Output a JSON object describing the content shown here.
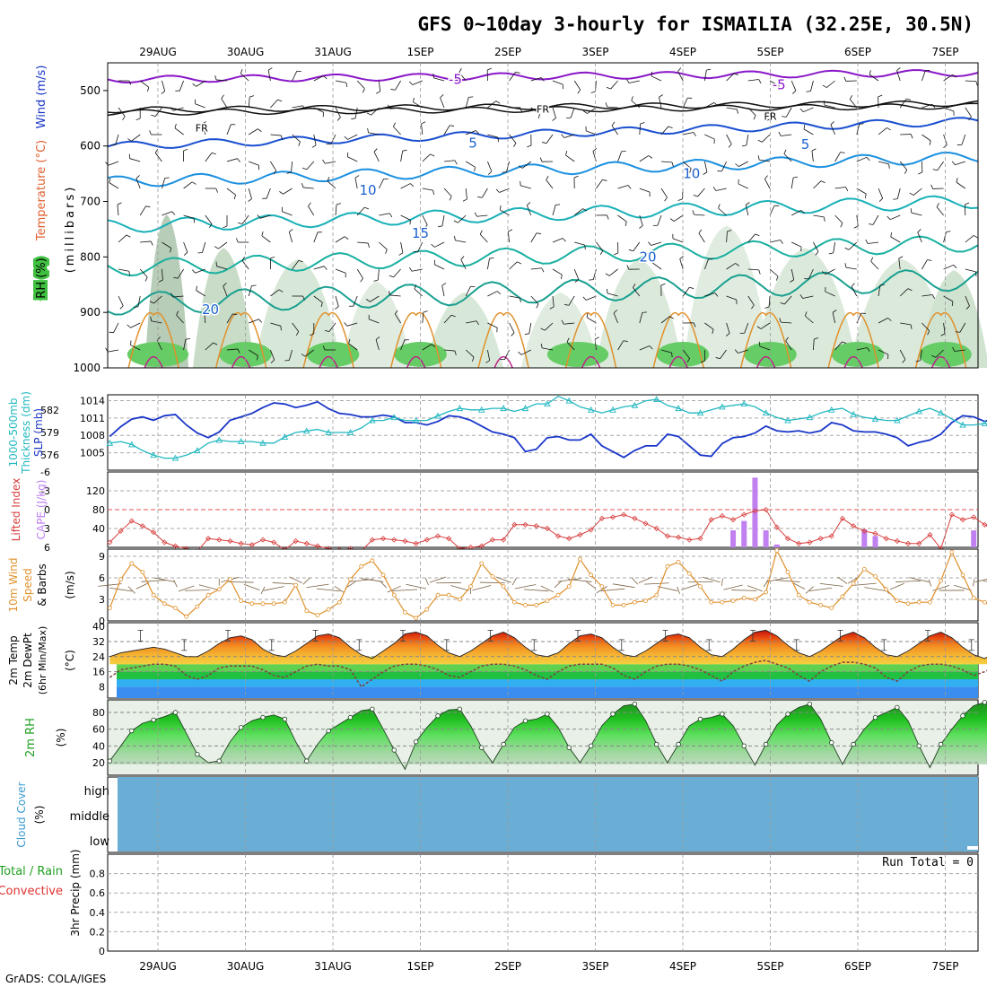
{
  "title": "GFS 0~10day 3-hourly for ISMAILIA (32.25E, 30.5N)",
  "credit": "GrADS: COLA/IGES",
  "run_total_label": "Run Total = 0",
  "colors": {
    "temp_contour": "#1a4fd0",
    "freezing": "#111111",
    "thickness": "#22b8c0",
    "slp": "#1a36c8",
    "lifted_index": "#d84040",
    "cape": "#c080f0",
    "wind10m": "#e0902a",
    "rh2m": "#20b020",
    "cloud": "#6aaed6"
  },
  "chart_data": [
    {
      "type": "line",
      "name": "upper-air",
      "ylabel_parts": [
        "RH (%)",
        "Temperature (°C)",
        "Wind (m/s)"
      ],
      "ylabel_mb": "(millibars)",
      "y_ticks": [
        500,
        600,
        700,
        800,
        900,
        1000
      ],
      "ylim": [
        1000,
        450
      ],
      "x_ticks": [
        "29AUG",
        "30AUG",
        "31AUG",
        "1SEP",
        "2SEP",
        "3SEP",
        "4SEP",
        "5SEP",
        "6SEP",
        "7SEP"
      ],
      "contour_labels": [
        {
          "text": "-5",
          "day": 3.4,
          "mb": 480
        },
        {
          "text": "-5",
          "day": 7.1,
          "mb": 490
        },
        {
          "text": "FR",
          "day": 0.5,
          "mb": 566
        },
        {
          "text": "FR",
          "day": 4.4,
          "mb": 532
        },
        {
          "text": "FR",
          "day": 7.0,
          "mb": 545
        },
        {
          "text": "5",
          "day": 3.6,
          "mb": 595
        },
        {
          "text": "5",
          "day": 7.4,
          "mb": 597
        },
        {
          "text": "10",
          "day": 2.4,
          "mb": 680
        },
        {
          "text": "10",
          "day": 6.1,
          "mb": 650
        },
        {
          "text": "15",
          "day": 3.0,
          "mb": 757
        },
        {
          "text": "20",
          "day": 5.6,
          "mb": 800
        },
        {
          "text": "20",
          "day": 0.6,
          "mb": 895
        }
      ]
    },
    {
      "type": "line",
      "name": "slp-thickness",
      "ylabel_left": [
        "1000-500mb",
        "Thickness (dm)"
      ],
      "ylabel_right": "SLP (mb)",
      "left_ticks": [
        576,
        579,
        582
      ],
      "right_ticks": [
        1005,
        1008,
        1011,
        1014
      ],
      "series": [
        {
          "name": "SLP",
          "values": [
            1007.8,
            1009.5,
            1010.8,
            1011.2,
            1010.6,
            1011.4,
            1011.6,
            1009.8,
            1008.4,
            1007.6,
            1008.6,
            1010.6,
            1011.2,
            1011.8,
            1012.8,
            1013.6,
            1013.4,
            1012.8,
            1013.2,
            1013.8,
            1012.6,
            1011.8,
            1011.6,
            1011.2,
            1011.2,
            1011.5,
            1011.2,
            1010.2,
            1010.2,
            1009.8,
            1010.4,
            1011.4,
            1011.2,
            1010.6,
            1009.6,
            1008.6,
            1008.2,
            1007.6,
            1005.2,
            1005.6,
            1007.6,
            1007.8,
            1007.2,
            1007.2,
            1008.2,
            1006.2,
            1005.2,
            1004.2,
            1005.4,
            1006.2,
            1006.2,
            1008.2,
            1007.8,
            1006.2,
            1004.6,
            1004.4,
            1006.6,
            1007.6,
            1007.8,
            1008.4,
            1009.6,
            1008.8,
            1008.6,
            1008.8,
            1008.4,
            1008.8,
            1010.2,
            1009.8,
            1008.8,
            1008.6,
            1008.6,
            1008.2,
            1007.6,
            1006.2,
            1006.8,
            1007.2,
            1008.2,
            1010.2,
            1011.4,
            1011.2,
            1010.4,
            1011.0,
            1011.4
          ]
        },
        {
          "name": "Thickness",
          "values": [
            577.6,
            577.8,
            577.4,
            576.6,
            576.0,
            575.6,
            575.6,
            576.0,
            576.6,
            577.6,
            578.0,
            577.8,
            577.8,
            577.8,
            577.6,
            577.6,
            578.4,
            579.0,
            579.2,
            579.4,
            579.0,
            579.0,
            579.0,
            579.6,
            580.6,
            580.6,
            581.0,
            580.6,
            580.6,
            580.6,
            581.2,
            581.8,
            582.2,
            582.0,
            582.0,
            582.2,
            582.2,
            581.8,
            582.2,
            582.8,
            582.8,
            583.8,
            583.2,
            582.4,
            582.0,
            581.6,
            582.0,
            582.4,
            582.6,
            583.2,
            583.4,
            582.6,
            582.2,
            581.6,
            581.6,
            582.0,
            582.4,
            582.6,
            582.8,
            582.4,
            581.6,
            581.0,
            580.6,
            580.8,
            581.0,
            581.6,
            582.0,
            582.2,
            581.4,
            581.0,
            580.8,
            580.6,
            580.6,
            581.2,
            581.8,
            582.2,
            581.6,
            580.8,
            580.0,
            580.0,
            580.2,
            579.6,
            580.4
          ]
        }
      ]
    },
    {
      "type": "bar",
      "name": "lifted-index-cape",
      "ylabel_left": "Lifted Index",
      "ylabel_right": "CAPE (J/kg)",
      "li_ticks": [
        "-6",
        "-3",
        "0",
        "3",
        "6"
      ],
      "cape_ticks": [
        40,
        80,
        120
      ],
      "lifted_index": [
        5.2,
        3.4,
        1.8,
        2.6,
        3.6,
        5.2,
        5.8,
        6.2,
        6.6,
        4.6,
        4.8,
        5.0,
        5.4,
        5.6,
        4.8,
        5.2,
        6.4,
        5.0,
        5.4,
        5.8,
        6.2,
        6.4,
        6.2,
        6.6,
        4.8,
        4.6,
        4.8,
        5.0,
        5.4,
        4.8,
        4.2,
        4.6,
        6.2,
        6.0,
        5.8,
        4.8,
        4.8,
        2.4,
        2.4,
        2.6,
        3.0,
        4.2,
        4.6,
        4.0,
        3.2,
        1.4,
        1.2,
        0.8,
        1.4,
        2.2,
        3.0,
        4.2,
        4.4,
        4.8,
        4.6,
        1.6,
        1.0,
        1.6,
        0.8,
        0.2,
        0.0,
        2.8,
        4.6,
        5.4,
        5.2,
        4.6,
        4.2,
        1.4,
        2.6,
        3.4,
        3.8,
        4.6,
        5.0,
        5.4,
        5.4,
        4.0,
        6.2,
        0.8,
        1.6,
        1.2,
        2.4,
        3.4,
        2.6
      ],
      "cape": [
        0,
        0,
        0,
        0,
        0,
        0,
        0,
        0,
        0,
        0,
        0,
        0,
        0,
        0,
        0,
        0,
        0,
        0,
        0,
        0,
        0,
        0,
        0,
        0,
        0,
        0,
        0,
        0,
        0,
        0,
        0,
        0,
        0,
        0,
        0,
        0,
        0,
        0,
        0,
        0,
        0,
        0,
        0,
        0,
        0,
        0,
        0,
        0,
        0,
        0,
        0,
        0,
        0,
        0,
        0,
        0,
        0,
        36,
        56,
        148,
        36,
        6,
        0,
        0,
        0,
        0,
        0,
        0,
        0,
        38,
        24,
        0,
        0,
        0,
        0,
        0,
        0,
        0,
        0,
        36,
        0,
        0,
        0
      ]
    },
    {
      "type": "line",
      "name": "wind10m",
      "ylabel": [
        "10m Wind",
        "Speed",
        "& Barbs",
        "(m/s)"
      ],
      "y_ticks": [
        0,
        3,
        6,
        9
      ],
      "series": [
        {
          "name": "Speed",
          "values": [
            1.8,
            5.8,
            8.0,
            6.8,
            3.6,
            2.4,
            1.8,
            0.6,
            2.0,
            3.6,
            4.4,
            5.8,
            2.8,
            2.4,
            2.4,
            2.4,
            2.6,
            5.0,
            1.4,
            0.8,
            1.6,
            2.6,
            5.8,
            7.6,
            8.4,
            6.4,
            3.6,
            1.2,
            0.4,
            1.6,
            3.6,
            3.6,
            3.0,
            4.8,
            8.0,
            6.2,
            4.8,
            2.6,
            2.2,
            2.2,
            2.8,
            3.6,
            4.8,
            8.6,
            6.4,
            4.8,
            2.2,
            2.2,
            2.6,
            2.8,
            3.6,
            7.6,
            8.2,
            6.6,
            4.8,
            2.6,
            2.6,
            2.8,
            3.2,
            3.0,
            4.0,
            9.8,
            6.8,
            3.6,
            2.6,
            2.2,
            1.8,
            3.4,
            5.2,
            7.2,
            6.2,
            4.4,
            2.8,
            2.4,
            2.6,
            2.6,
            5.6,
            9.6,
            6.4,
            3.2,
            2.6,
            1.8,
            1.0
          ]
        }
      ]
    },
    {
      "type": "area",
      "name": "temp-dewpt",
      "ylabel": [
        "2m Temp",
        "2m DewPt",
        "(6hr Min/Max)",
        "(°C)"
      ],
      "y_ticks": [
        8,
        16,
        24,
        32,
        40
      ],
      "series": [
        {
          "name": "Temp",
          "values": [
            24,
            26,
            27,
            28,
            29,
            28,
            26,
            24,
            24,
            27,
            31,
            34,
            35,
            33,
            28,
            25,
            24,
            27,
            31,
            35,
            36,
            34,
            29,
            25,
            23,
            27,
            31,
            36,
            37,
            35,
            30,
            26,
            24,
            27,
            31,
            35,
            37,
            34,
            29,
            25,
            24,
            26,
            31,
            35,
            36,
            34,
            29,
            25,
            24,
            27,
            31,
            35,
            36,
            34,
            29,
            25,
            24,
            28,
            33,
            37,
            38,
            35,
            30,
            26,
            24,
            27,
            31,
            35,
            37,
            34,
            29,
            25,
            24,
            27,
            31,
            35,
            37,
            34,
            29,
            25,
            23,
            26,
            24
          ]
        },
        {
          "name": "DewPt",
          "values": [
            13,
            17,
            18,
            19,
            20,
            20,
            19,
            14,
            12,
            14,
            18,
            19,
            19,
            19,
            17,
            14,
            13,
            16,
            19,
            20,
            19,
            19,
            17,
            8,
            12,
            16,
            19,
            20,
            20,
            19,
            17,
            14,
            13,
            16,
            19,
            20,
            20,
            19,
            17,
            14,
            12,
            16,
            19,
            20,
            20,
            20,
            18,
            14,
            12,
            16,
            19,
            20,
            20,
            19,
            17,
            14,
            11,
            16,
            19,
            21,
            22,
            20,
            18,
            14,
            11,
            16,
            19,
            21,
            21,
            20,
            18,
            13,
            11,
            16,
            19,
            20,
            20,
            19,
            17,
            14,
            16,
            19,
            20
          ]
        }
      ]
    },
    {
      "type": "area",
      "name": "rh2m",
      "ylabel": [
        "2m RH",
        "(%)"
      ],
      "y_ticks": [
        20,
        40,
        60,
        80
      ],
      "series": [
        {
          "name": "RH",
          "values": [
            22,
            40,
            58,
            67,
            71,
            75,
            80,
            55,
            30,
            20,
            22,
            45,
            62,
            70,
            74,
            77,
            72,
            45,
            22,
            42,
            58,
            66,
            74,
            82,
            84,
            60,
            35,
            12,
            45,
            62,
            76,
            83,
            84,
            64,
            38,
            20,
            42,
            62,
            70,
            72,
            78,
            62,
            38,
            20,
            40,
            64,
            78,
            88,
            90,
            70,
            42,
            20,
            42,
            64,
            72,
            74,
            78,
            64,
            40,
            17,
            42,
            65,
            78,
            86,
            90,
            72,
            44,
            18,
            42,
            60,
            74,
            80,
            86,
            70,
            40,
            14,
            42,
            60,
            76,
            88,
            92,
            80,
            46
          ]
        }
      ]
    },
    {
      "type": "heatmap",
      "name": "cloud-cover",
      "ylabel": [
        "Cloud Cover",
        "(%)"
      ],
      "levels": [
        "high",
        "middle",
        "low"
      ]
    },
    {
      "type": "line",
      "name": "precip",
      "ylabel": [
        "3hr Precip (mm)"
      ],
      "legend_total_rain": "Total / Rain",
      "legend_convective": "Convective",
      "y_ticks": [
        "0",
        "0.2",
        "0.4",
        "0.6",
        "0.8"
      ],
      "ylim": [
        0,
        1
      ]
    }
  ]
}
